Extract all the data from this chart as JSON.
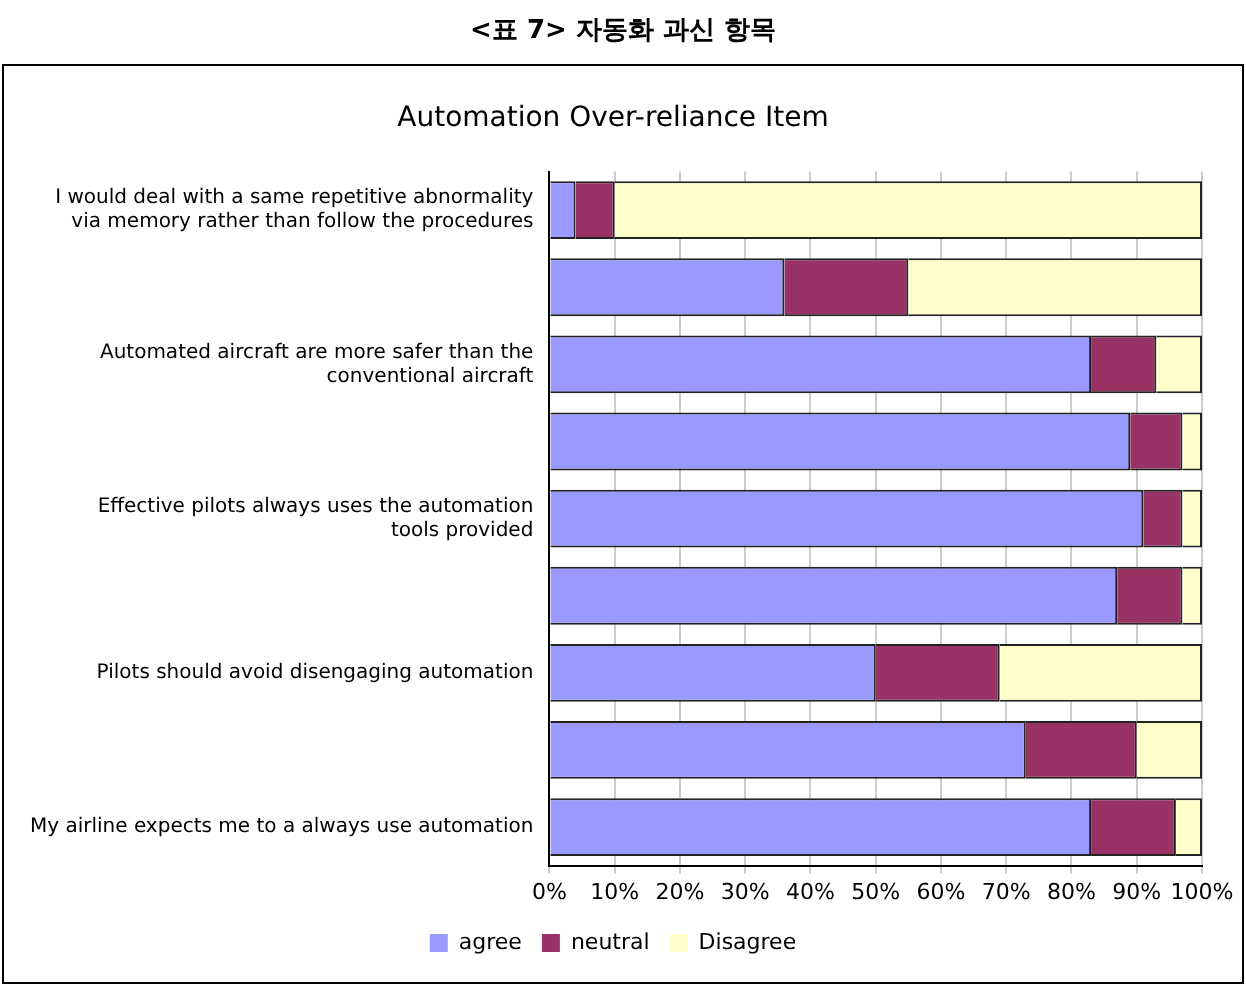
{
  "chart_data": {
    "type": "bar",
    "orientation": "horizontal",
    "stacked": true,
    "title": "<표 7> 자동화 과신 항목",
    "subtitle": "Automation Over-reliance Item",
    "categories": [
      "I would deal with a same repetitive abnormality via memory rather than follow the procedures",
      null,
      "Automated aircraft are more safer than the conventional aircraft",
      null,
      "Effective pilots always uses the automation tools provided",
      null,
      "Pilots should avoid disengaging automation",
      null,
      "My airline expects me to a always use automation"
    ],
    "series": [
      {
        "name": "agree",
        "color": "#9999ff",
        "values": [
          4,
          36,
          83,
          89,
          91,
          87,
          50,
          73,
          83
        ]
      },
      {
        "name": "neutral",
        "color": "#993366",
        "values": [
          6,
          19,
          10,
          8,
          6,
          10,
          19,
          17,
          13
        ]
      },
      {
        "name": "Disagree",
        "color": "#ffffcc",
        "values": [
          90,
          45,
          7,
          3,
          3,
          3,
          31,
          10,
          4
        ]
      }
    ],
    "xlim": [
      0,
      100
    ],
    "xticks": [
      {
        "value": 0,
        "label": "0%"
      },
      {
        "value": 10,
        "label": "10%"
      },
      {
        "value": 20,
        "label": "20%"
      },
      {
        "value": 30,
        "label": "30%"
      },
      {
        "value": 40,
        "label": "40%"
      },
      {
        "value": 50,
        "label": "50%"
      },
      {
        "value": 60,
        "label": "60%"
      },
      {
        "value": 70,
        "label": "70%"
      },
      {
        "value": 80,
        "label": "80%"
      },
      {
        "value": 90,
        "label": "90%"
      },
      {
        "value": 100,
        "label": "100%"
      }
    ],
    "grid": "x",
    "legend": "bottom"
  }
}
